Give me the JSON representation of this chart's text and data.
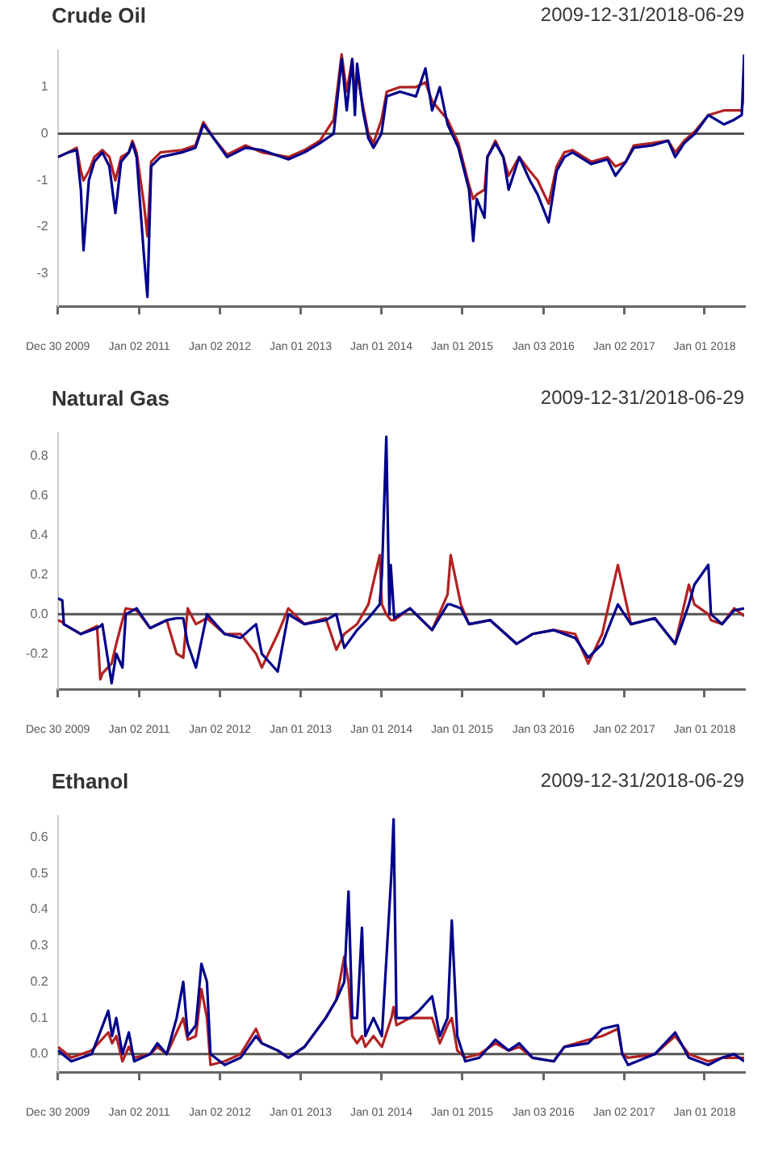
{
  "chart_data": [
    {
      "type": "line",
      "title": "Crude Oil",
      "subtitle": "2009-12-31/2018-06-29",
      "marker": "none",
      "x": [
        "2009-12-31",
        "2010-02-15",
        "2010-03-25",
        "2010-04-13",
        "2010-04-25",
        "2010-05-19",
        "2010-06-13",
        "2010-07-19",
        "2010-08-20",
        "2010-09-16",
        "2010-10-12",
        "2010-11-16",
        "2010-12-02",
        "2010-12-21",
        "2011-01-23",
        "2011-02-08",
        "2011-02-25",
        "2011-04-08",
        "2011-07-13",
        "2011-09-13",
        "2011-10-19",
        "2011-12-05",
        "2012-02-03",
        "2012-04-27",
        "2012-07-09",
        "2012-11-06",
        "2013-01-18",
        "2013-03-29",
        "2013-05-30",
        "2013-07-05",
        "2013-07-28",
        "2013-08-22",
        "2013-09-03",
        "2013-09-13",
        "2013-10-09",
        "2013-11-03",
        "2013-11-26",
        "2014-01-01",
        "2014-01-25",
        "2014-03-26",
        "2014-06-06",
        "2014-07-19",
        "2014-08-18",
        "2014-09-22",
        "2014-10-27",
        "2014-12-15",
        "2015-02-01",
        "2015-02-20",
        "2015-03-08",
        "2015-04-12",
        "2015-04-25",
        "2015-05-31",
        "2015-07-06",
        "2015-07-30",
        "2015-09-16",
        "2015-11-03",
        "2015-12-08",
        "2016-01-27",
        "2016-03-03",
        "2016-04-07",
        "2016-05-14",
        "2016-08-07",
        "2016-10-19",
        "2016-11-24",
        "2017-01-10",
        "2017-02-15",
        "2017-05-10",
        "2017-07-20",
        "2017-08-21",
        "2017-10-01",
        "2017-11-18",
        "2018-01-18",
        "2018-03-29",
        "2018-05-15",
        "2018-06-18",
        "2018-06-29"
      ],
      "series": [
        {
          "color": "#b22222",
          "values": [
            -0.5,
            -0.4,
            -0.3,
            -0.8,
            -1.0,
            -0.8,
            -0.5,
            -0.35,
            -0.5,
            -1.0,
            -0.5,
            -0.4,
            -0.15,
            -0.4,
            -1.5,
            -2.2,
            -0.6,
            -0.4,
            -0.35,
            -0.25,
            0.25,
            -0.1,
            -0.45,
            -0.25,
            -0.4,
            -0.5,
            -0.35,
            -0.15,
            0.3,
            1.7,
            0.9,
            1.6,
            0.8,
            1.3,
            0.6,
            0.0,
            -0.2,
            0.3,
            0.9,
            1.0,
            1.0,
            1.1,
            0.7,
            0.5,
            0.3,
            -0.2,
            -1.1,
            -1.4,
            -1.3,
            -1.2,
            -0.5,
            -0.15,
            -0.5,
            -0.9,
            -0.5,
            -0.8,
            -1.0,
            -1.5,
            -0.7,
            -0.4,
            -0.35,
            -0.6,
            -0.5,
            -0.7,
            -0.6,
            -0.25,
            -0.2,
            -0.15,
            -0.4,
            -0.15,
            0.05,
            0.4,
            0.5,
            0.5,
            0.5,
            0.9
          ]
        },
        {
          "color": "#00008b",
          "values": [
            -0.5,
            -0.4,
            -0.35,
            -1.2,
            -2.5,
            -1.0,
            -0.6,
            -0.4,
            -0.7,
            -1.7,
            -0.6,
            -0.4,
            -0.2,
            -0.5,
            -2.6,
            -3.5,
            -0.7,
            -0.5,
            -0.4,
            -0.3,
            0.2,
            -0.1,
            -0.5,
            -0.3,
            -0.35,
            -0.55,
            -0.4,
            -0.2,
            0.0,
            1.6,
            0.5,
            1.6,
            0.4,
            1.5,
            0.5,
            -0.1,
            -0.3,
            0.0,
            0.8,
            0.9,
            0.8,
            1.4,
            0.5,
            1.0,
            0.2,
            -0.3,
            -1.2,
            -2.3,
            -1.4,
            -1.8,
            -0.5,
            -0.2,
            -0.5,
            -1.2,
            -0.5,
            -1.0,
            -1.3,
            -1.9,
            -0.8,
            -0.5,
            -0.4,
            -0.65,
            -0.55,
            -0.9,
            -0.6,
            -0.3,
            -0.25,
            -0.15,
            -0.5,
            -0.2,
            0.0,
            0.4,
            0.2,
            0.3,
            0.4,
            1.7
          ]
        }
      ],
      "xlim": [
        "2009-12-30",
        "2018-06-29"
      ],
      "xticks": [
        {
          "value": "2009-12-30",
          "label": "Dec 30 2009"
        },
        {
          "value": "2011-01-02",
          "label": "Jan 02 2011"
        },
        {
          "value": "2012-01-02",
          "label": "Jan 02 2012"
        },
        {
          "value": "2013-01-01",
          "label": "Jan 01 2013"
        },
        {
          "value": "2014-01-01",
          "label": "Jan 01 2014"
        },
        {
          "value": "2015-01-01",
          "label": "Jan 01 2015"
        },
        {
          "value": "2016-01-03",
          "label": "Jan 03 2016"
        },
        {
          "value": "2017-01-02",
          "label": "Jan 02 2017"
        },
        {
          "value": "2018-01-01",
          "label": "Jan 01 2018"
        }
      ],
      "ylim": [
        -3.7,
        1.8
      ],
      "yticks": [
        -3,
        -2,
        -1,
        0,
        1
      ],
      "ref_lines": [
        {
          "axis": "y",
          "value": 0,
          "color": "#555555"
        }
      ]
    },
    {
      "type": "line",
      "title": "Natural Gas",
      "subtitle": "2009-12-31/2018-06-29",
      "marker": "none",
      "x": [
        "2009-12-31",
        "2010-01-19",
        "2010-01-26",
        "2010-04-13",
        "2010-06-25",
        "2010-07-10",
        "2010-07-19",
        "2010-08-30",
        "2010-09-20",
        "2010-10-18",
        "2010-11-02",
        "2010-12-21",
        "2011-02-20",
        "2011-05-06",
        "2011-06-20",
        "2011-07-20",
        "2011-08-09",
        "2011-09-15",
        "2011-11-04",
        "2012-01-23",
        "2012-04-04",
        "2012-06-13",
        "2012-07-09",
        "2012-09-19",
        "2012-11-06",
        "2013-01-18",
        "2013-04-24",
        "2013-06-11",
        "2013-07-17",
        "2013-09-13",
        "2013-11-03",
        "2013-12-24",
        "2014-01-03",
        "2014-01-23",
        "2014-02-06",
        "2014-02-12",
        "2014-02-28",
        "2014-05-10",
        "2014-08-18",
        "2014-10-27",
        "2014-11-10",
        "2014-12-26",
        "2015-02-01",
        "2015-05-08",
        "2015-09-04",
        "2015-11-15",
        "2016-02-19",
        "2016-05-26",
        "2016-07-24",
        "2016-09-25",
        "2016-12-05",
        "2017-02-02",
        "2017-05-21",
        "2017-08-21",
        "2017-10-22",
        "2017-11-16",
        "2018-01-18",
        "2018-01-30",
        "2018-03-21",
        "2018-05-15",
        "2018-06-29"
      ],
      "series": [
        {
          "color": "#b22222",
          "values": [
            -0.03,
            -0.04,
            -0.05,
            -0.1,
            -0.06,
            -0.33,
            -0.3,
            -0.25,
            -0.15,
            -0.03,
            0.03,
            0.02,
            -0.07,
            -0.03,
            -0.2,
            -0.22,
            0.03,
            -0.05,
            -0.02,
            -0.1,
            -0.1,
            -0.2,
            -0.27,
            -0.1,
            0.03,
            -0.05,
            -0.02,
            -0.18,
            -0.1,
            -0.05,
            0.05,
            0.3,
            0.05,
            0.0,
            -0.02,
            -0.03,
            -0.03,
            0.03,
            -0.08,
            0.1,
            0.3,
            0.05,
            -0.05,
            -0.03,
            -0.15,
            -0.1,
            -0.08,
            -0.1,
            -0.25,
            -0.1,
            0.25,
            -0.05,
            -0.02,
            -0.15,
            0.15,
            0.05,
            0.0,
            -0.03,
            -0.05,
            0.03,
            -0.01
          ]
        },
        {
          "color": "#00008b",
          "values": [
            0.08,
            0.07,
            -0.05,
            -0.1,
            -0.07,
            -0.06,
            -0.05,
            -0.35,
            -0.2,
            -0.27,
            0.0,
            0.03,
            -0.07,
            -0.03,
            -0.02,
            -0.02,
            -0.15,
            -0.27,
            0.0,
            -0.1,
            -0.12,
            -0.05,
            -0.2,
            -0.29,
            0.0,
            -0.05,
            -0.03,
            0.0,
            -0.17,
            -0.08,
            -0.02,
            0.05,
            0.2,
            0.9,
            0.0,
            0.25,
            -0.02,
            0.03,
            -0.08,
            0.05,
            0.05,
            0.03,
            -0.05,
            -0.03,
            -0.15,
            -0.1,
            -0.08,
            -0.12,
            -0.22,
            -0.15,
            0.05,
            -0.05,
            -0.02,
            -0.15,
            0.05,
            0.15,
            0.25,
            0.0,
            -0.05,
            0.02,
            0.03
          ]
        }
      ],
      "xlim": [
        "2009-12-30",
        "2018-06-29"
      ],
      "xticks": [
        {
          "value": "2009-12-30",
          "label": "Dec 30 2009"
        },
        {
          "value": "2011-01-02",
          "label": "Jan 02 2011"
        },
        {
          "value": "2012-01-02",
          "label": "Jan 02 2012"
        },
        {
          "value": "2013-01-01",
          "label": "Jan 01 2013"
        },
        {
          "value": "2014-01-01",
          "label": "Jan 01 2014"
        },
        {
          "value": "2015-01-01",
          "label": "Jan 01 2015"
        },
        {
          "value": "2016-01-03",
          "label": "Jan 03 2016"
        },
        {
          "value": "2017-01-02",
          "label": "Jan 02 2017"
        },
        {
          "value": "2018-01-01",
          "label": "Jan 01 2018"
        }
      ],
      "ylim": [
        -0.38,
        0.92
      ],
      "yticks": [
        -0.2,
        {
          "value": 0,
          "label": "0.0"
        },
        0.2,
        0.4,
        0.6,
        0.8
      ],
      "ref_lines": [
        {
          "axis": "y",
          "value": 0,
          "color": "#555555"
        }
      ]
    },
    {
      "type": "line",
      "title": "Ethanol",
      "subtitle": "2009-12-31/2018-06-29",
      "marker": "none",
      "x": [
        "2009-12-31",
        "2010-03-01",
        "2010-06-01",
        "2010-08-15",
        "2010-09-01",
        "2010-09-20",
        "2010-10-18",
        "2010-11-16",
        "2010-12-10",
        "2011-02-20",
        "2011-03-25",
        "2011-05-06",
        "2011-06-20",
        "2011-07-20",
        "2011-08-09",
        "2011-09-15",
        "2011-10-10",
        "2011-11-04",
        "2011-11-20",
        "2012-01-23",
        "2012-04-04",
        "2012-06-13",
        "2012-07-09",
        "2012-09-19",
        "2012-11-06",
        "2013-01-18",
        "2013-04-24",
        "2013-06-11",
        "2013-07-17",
        "2013-08-05",
        "2013-08-22",
        "2013-09-13",
        "2013-10-05",
        "2013-10-20",
        "2013-11-26",
        "2014-01-03",
        "2014-02-15",
        "2014-02-25",
        "2014-03-10",
        "2014-05-10",
        "2014-06-20",
        "2014-08-18",
        "2014-09-22",
        "2014-10-27",
        "2014-11-15",
        "2014-12-10",
        "2015-01-15",
        "2015-03-20",
        "2015-05-31",
        "2015-07-30",
        "2015-09-16",
        "2015-11-15",
        "2016-02-19",
        "2016-04-07",
        "2016-07-24",
        "2016-09-25",
        "2016-12-05",
        "2016-12-25",
        "2017-01-20",
        "2017-05-21",
        "2017-08-21",
        "2017-10-22",
        "2018-01-18",
        "2018-03-21",
        "2018-05-15",
        "2018-06-29"
      ],
      "series": [
        {
          "color": "#b22222",
          "values": [
            0.02,
            -0.01,
            0.01,
            0.06,
            0.03,
            0.05,
            -0.02,
            0.02,
            -0.01,
            0.0,
            0.02,
            0.0,
            0.06,
            0.1,
            0.04,
            0.05,
            0.18,
            0.1,
            -0.03,
            -0.02,
            0.0,
            0.07,
            0.03,
            0.01,
            -0.01,
            0.02,
            0.1,
            0.15,
            0.27,
            0.2,
            0.05,
            0.03,
            0.05,
            0.02,
            0.05,
            0.02,
            0.1,
            0.13,
            0.08,
            0.1,
            0.1,
            0.1,
            0.03,
            0.08,
            0.1,
            0.01,
            -0.01,
            0.0,
            0.03,
            0.01,
            0.02,
            -0.01,
            -0.02,
            0.02,
            0.04,
            0.05,
            0.07,
            0.0,
            -0.01,
            0.0,
            0.05,
            0.0,
            -0.02,
            -0.01,
            -0.01,
            -0.01
          ]
        },
        {
          "color": "#00008b",
          "values": [
            0.01,
            -0.02,
            0.0,
            0.12,
            0.05,
            0.1,
            0.0,
            0.06,
            -0.02,
            0.0,
            0.03,
            0.0,
            0.1,
            0.2,
            0.05,
            0.08,
            0.25,
            0.2,
            0.0,
            -0.03,
            -0.01,
            0.05,
            0.03,
            0.01,
            -0.01,
            0.02,
            0.1,
            0.15,
            0.2,
            0.45,
            0.1,
            0.1,
            0.35,
            0.05,
            0.1,
            0.05,
            0.5,
            0.65,
            0.1,
            0.1,
            0.12,
            0.16,
            0.05,
            0.1,
            0.37,
            0.05,
            -0.02,
            -0.01,
            0.04,
            0.01,
            0.03,
            -0.01,
            -0.02,
            0.02,
            0.03,
            0.07,
            0.08,
            0.0,
            -0.03,
            0.0,
            0.06,
            -0.01,
            -0.03,
            -0.01,
            0.0,
            -0.02
          ]
        }
      ],
      "xlim": [
        "2009-12-30",
        "2018-06-29"
      ],
      "xticks": [
        {
          "value": "2009-12-30",
          "label": "Dec 30 2009"
        },
        {
          "value": "2011-01-02",
          "label": "Jan 02 2011"
        },
        {
          "value": "2012-01-02",
          "label": "Jan 02 2012"
        },
        {
          "value": "2013-01-01",
          "label": "Jan 01 2013"
        },
        {
          "value": "2014-01-01",
          "label": "Jan 01 2014"
        },
        {
          "value": "2015-01-01",
          "label": "Jan 01 2015"
        },
        {
          "value": "2016-01-03",
          "label": "Jan 03 2016"
        },
        {
          "value": "2017-01-02",
          "label": "Jan 02 2017"
        },
        {
          "value": "2018-01-01",
          "label": "Jan 01 2018"
        }
      ],
      "ylim": [
        -0.05,
        0.66
      ],
      "yticks": [
        {
          "value": 0,
          "label": "0.0"
        },
        0.1,
        0.2,
        0.3,
        0.4,
        0.5,
        0.6
      ],
      "ref_lines": [
        {
          "axis": "y",
          "value": 0,
          "color": "#555555"
        }
      ]
    }
  ]
}
